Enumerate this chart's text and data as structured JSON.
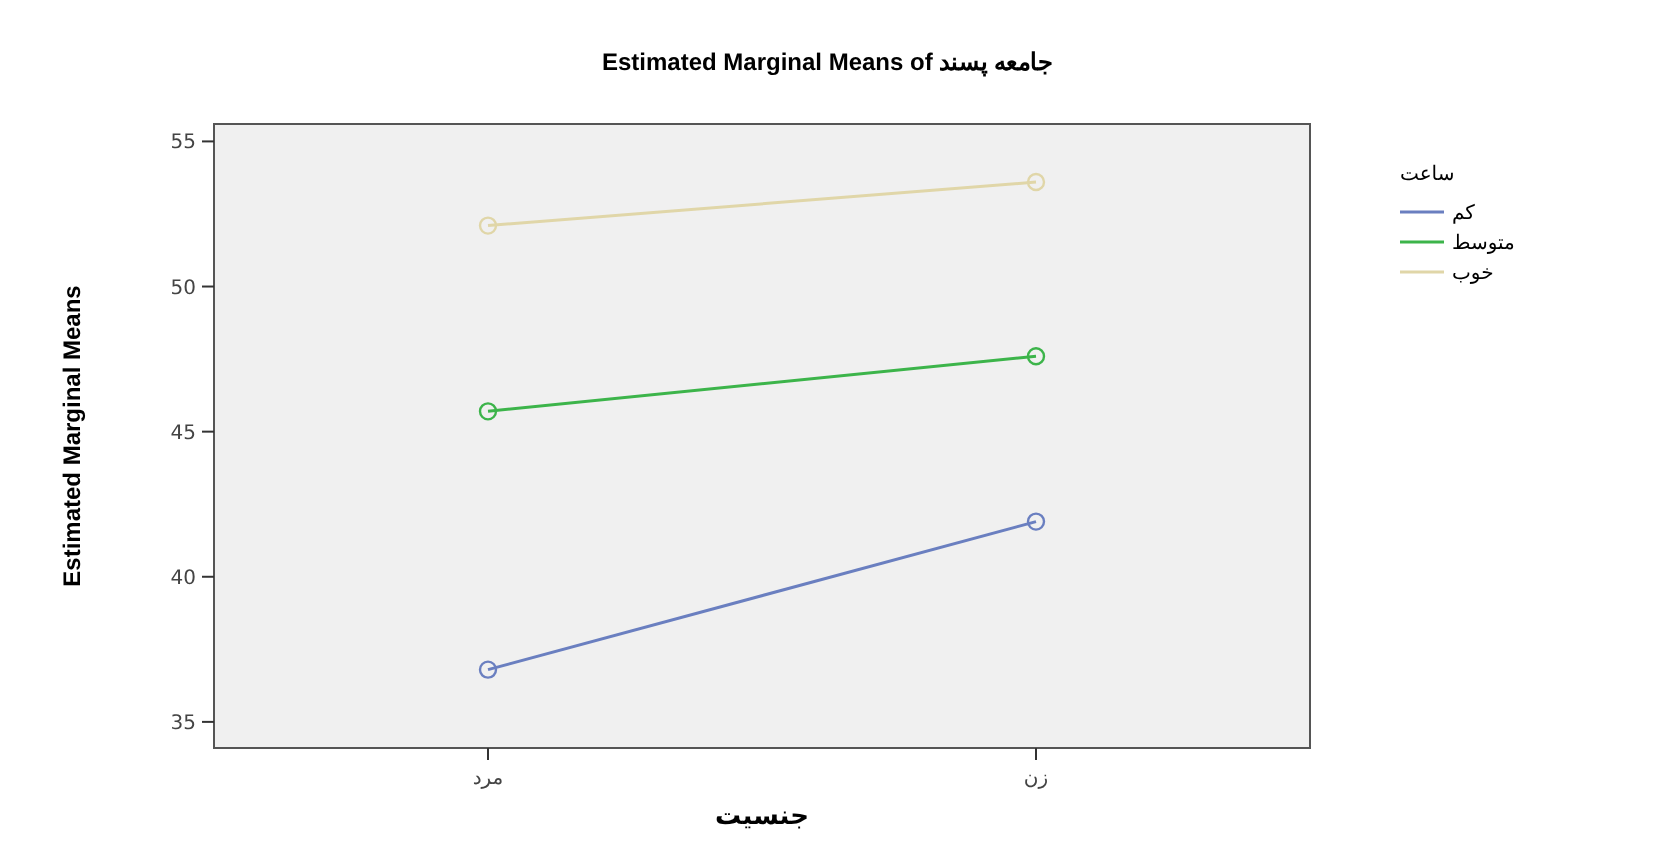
{
  "chart_data": {
    "type": "line",
    "title": "Estimated Marginal Means of جامعه پسند",
    "xlabel": "جنسیت",
    "ylabel": "Estimated Marginal Means",
    "legend_title": "ساعت",
    "categories": [
      "مرد",
      "زن"
    ],
    "series": [
      {
        "name": "کم",
        "color": "#6a7fc0",
        "values": [
          36.8,
          41.9
        ]
      },
      {
        "name": "متوسط",
        "color": "#3cb44a",
        "values": [
          45.7,
          47.6
        ]
      },
      {
        "name": "خوب",
        "color": "#e0d6a8",
        "values": [
          52.1,
          53.6
        ]
      }
    ],
    "ylim": [
      34.1,
      55.6
    ],
    "yticks": [
      35,
      40,
      45,
      50,
      55
    ],
    "marker": "circle",
    "legend": "top right",
    "grid": false
  }
}
